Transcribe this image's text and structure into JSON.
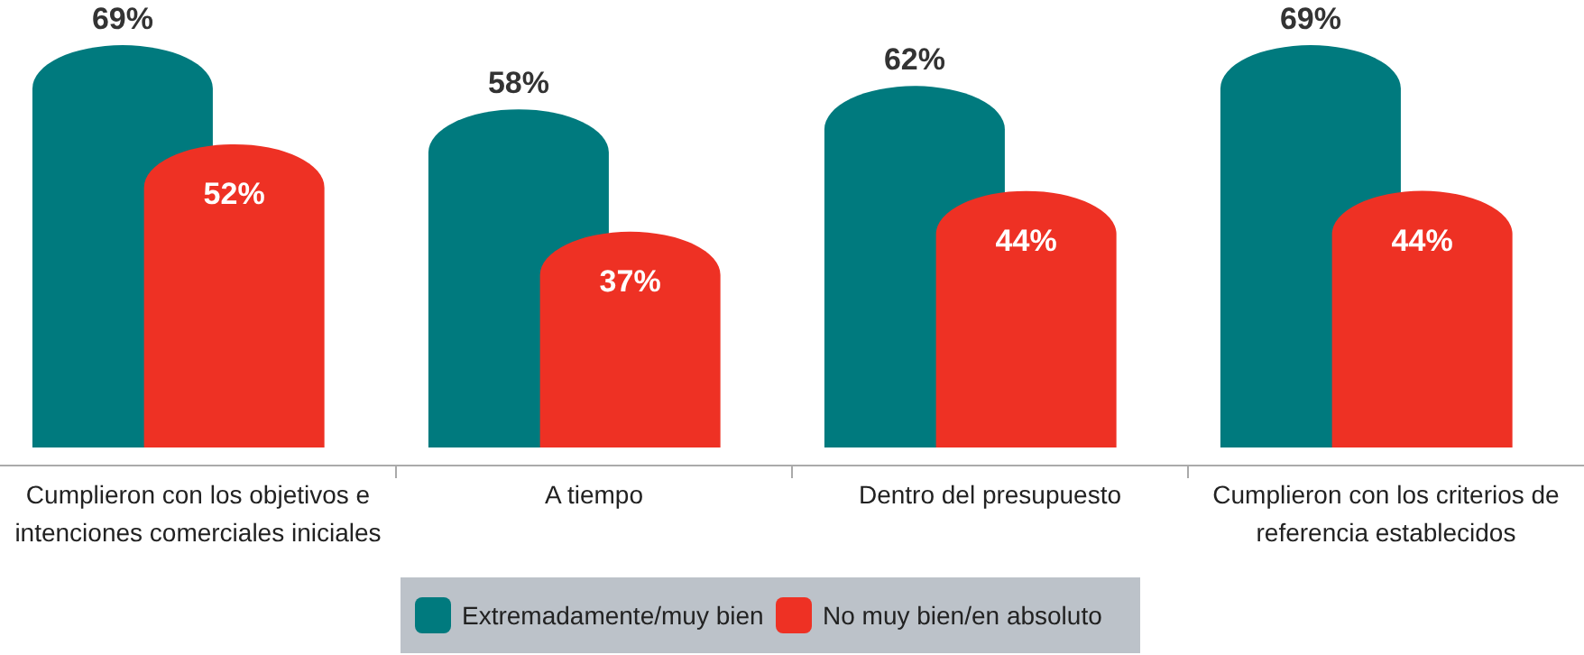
{
  "chart_data": {
    "type": "bar",
    "categories": [
      "Cumplieron con los objetivos e intenciones comerciales iniciales",
      "A tiempo",
      "Dentro del presupuesto",
      "Cumplieron con los criterios de referencia establecidos"
    ],
    "series": [
      {
        "name": "Extremadamente/muy bien",
        "color": "#007a7e",
        "values": [
          69,
          58,
          62,
          69
        ],
        "value_labels": [
          "69%",
          "58%",
          "62%",
          "69%"
        ]
      },
      {
        "name": "No muy bien/en absoluto",
        "color": "#ee3124",
        "values": [
          52,
          37,
          44,
          44
        ],
        "value_labels": [
          "52%",
          "37%",
          "44%",
          "44%"
        ]
      }
    ],
    "legend": "bottom"
  }
}
